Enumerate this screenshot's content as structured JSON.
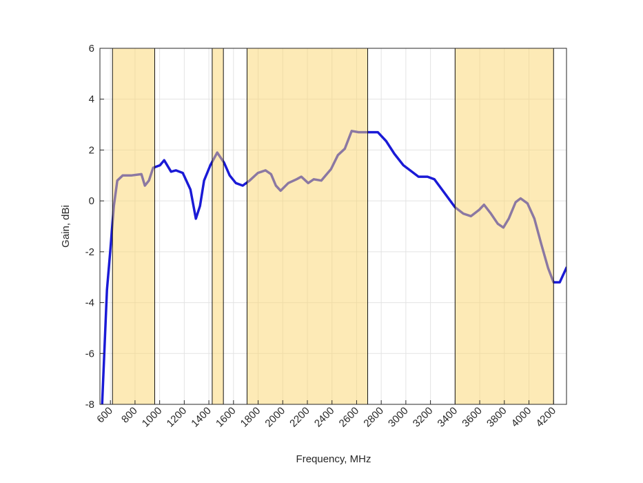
{
  "chart_data": {
    "type": "line",
    "xlabel": "Frequency, MHz",
    "ylabel": "Gain, dBi",
    "xlim": [
      515,
      4305
    ],
    "ylim": [
      -8,
      6
    ],
    "xticks": [
      600,
      800,
      1000,
      1200,
      1400,
      1600,
      1800,
      2000,
      2200,
      2400,
      2600,
      2800,
      3000,
      3200,
      3400,
      3600,
      3800,
      4000,
      4200
    ],
    "yticks": [
      -8,
      -6,
      -4,
      -2,
      0,
      2,
      4,
      6
    ],
    "grid": true,
    "color": "#1a1ad6",
    "band_color": "#fcd66e",
    "bands": [
      [
        617,
        960
      ],
      [
        1427,
        1518
      ],
      [
        1710,
        2690
      ],
      [
        3400,
        4200
      ]
    ],
    "x": [
      533,
      572,
      600,
      628,
      656,
      700,
      768,
      852,
      880,
      913,
      947,
      1003,
      1037,
      1093,
      1132,
      1188,
      1250,
      1294,
      1328,
      1361,
      1412,
      1468,
      1524,
      1569,
      1619,
      1675,
      1731,
      1798,
      1860,
      1905,
      1944,
      1983,
      2045,
      2112,
      2151,
      2207,
      2252,
      2313,
      2392,
      2448,
      2504,
      2560,
      2616,
      2672,
      2772,
      2840,
      2907,
      2980,
      3035,
      3103,
      3176,
      3232,
      3316,
      3400,
      3467,
      3529,
      3596,
      3635,
      3691,
      3747,
      3792,
      3836,
      3892,
      3932,
      3988,
      4044,
      4100,
      4156,
      4200,
      4250,
      4307
    ],
    "values": [
      -8,
      -3.5,
      -1.9,
      -0.2,
      0.8,
      1.0,
      1.0,
      1.05,
      0.6,
      0.8,
      1.3,
      1.4,
      1.6,
      1.15,
      1.2,
      1.1,
      0.45,
      -0.7,
      -0.2,
      0.8,
      1.4,
      1.9,
      1.5,
      1.0,
      0.7,
      0.6,
      0.8,
      1.1,
      1.2,
      1.05,
      0.6,
      0.4,
      0.7,
      0.85,
      0.95,
      0.7,
      0.85,
      0.8,
      1.25,
      1.8,
      2.05,
      2.75,
      2.7,
      2.7,
      2.7,
      2.35,
      1.85,
      1.4,
      1.2,
      0.95,
      0.95,
      0.85,
      0.3,
      -0.25,
      -0.5,
      -0.6,
      -0.35,
      -0.15,
      -0.5,
      -0.9,
      -1.05,
      -0.7,
      -0.05,
      0.1,
      -0.1,
      -0.7,
      -1.7,
      -2.65,
      -3.2,
      -3.2,
      -2.6
    ]
  }
}
